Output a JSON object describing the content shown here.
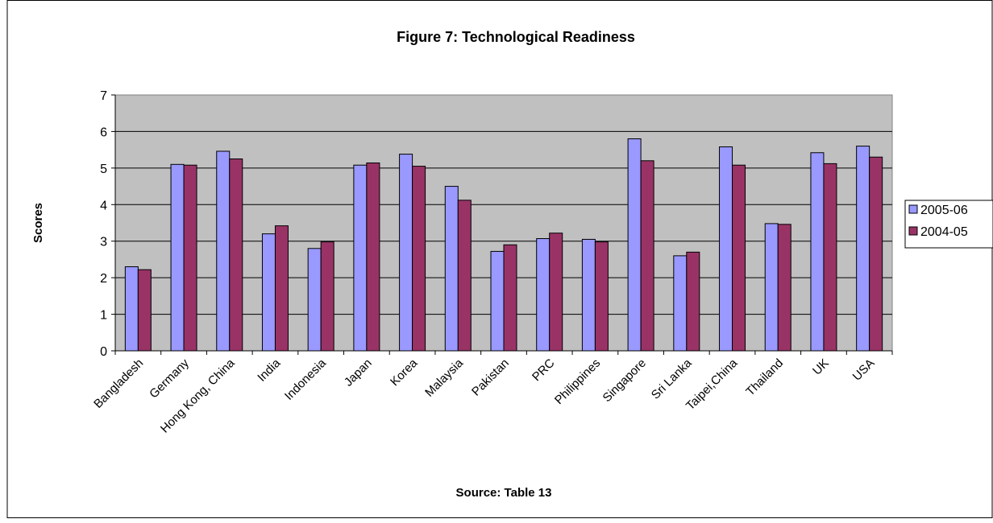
{
  "chart_data": {
    "type": "bar",
    "title": "Figure 7: Technological Readiness",
    "xlabel": "Source:  Table 13",
    "ylabel": "Scores",
    "ylim": [
      0,
      7
    ],
    "yticks": [
      0,
      1,
      2,
      3,
      4,
      5,
      6,
      7
    ],
    "grid": true,
    "legend_position": "right",
    "categories": [
      "Bangladesh",
      "Germany",
      "Hong Kong, China",
      "India",
      "Indonesia",
      "Japan",
      "Korea",
      "Malaysia",
      "Pakistan",
      "PRC",
      "Philippines",
      "Singapore",
      "Sri Lanka",
      "Taipei,China",
      "Thailand",
      "UK",
      "USA"
    ],
    "series": [
      {
        "name": "2005-06",
        "color": "#9999ff",
        "values": [
          2.3,
          5.1,
          5.46,
          3.2,
          2.8,
          5.08,
          5.38,
          4.5,
          2.72,
          3.07,
          3.05,
          5.8,
          2.6,
          5.58,
          3.48,
          5.42,
          5.6
        ]
      },
      {
        "name": "2004-05",
        "color": "#993366",
        "values": [
          2.22,
          5.08,
          5.25,
          3.42,
          2.98,
          5.14,
          5.05,
          4.12,
          2.9,
          3.22,
          2.98,
          5.2,
          2.7,
          5.08,
          3.46,
          5.12,
          5.3
        ]
      }
    ]
  }
}
